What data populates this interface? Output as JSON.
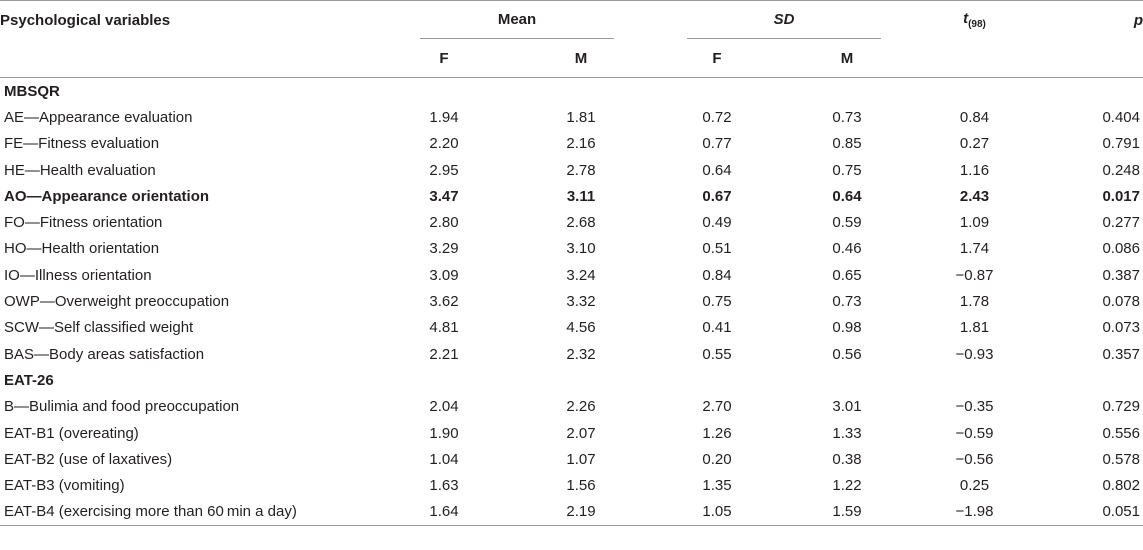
{
  "header": {
    "variable_col": "Psychological variables",
    "mean_group": "Mean",
    "sd_group": "SD",
    "t_label": "t",
    "t_sub": "(98)",
    "p_label": "p",
    "f_label": "F",
    "m_label": "M"
  },
  "rows": [
    {
      "type": "section",
      "label": "MBSQR"
    },
    {
      "type": "data",
      "label": "AE—Appearance evaluation",
      "mean_f": "1.94",
      "mean_m": "1.81",
      "sd_f": "0.72",
      "sd_m": "0.73",
      "t": "0.84",
      "p": "0.404"
    },
    {
      "type": "data",
      "label": "FE—Fitness evaluation",
      "mean_f": "2.20",
      "mean_m": "2.16",
      "sd_f": "0.77",
      "sd_m": "0.85",
      "t": "0.27",
      "p": "0.791"
    },
    {
      "type": "data",
      "label": "HE—Health evaluation",
      "mean_f": "2.95",
      "mean_m": "2.78",
      "sd_f": "0.64",
      "sd_m": "0.75",
      "t": "1.16",
      "p": "0.248"
    },
    {
      "type": "bold",
      "label": "AO—Appearance orientation",
      "mean_f": "3.47",
      "mean_m": "3.11",
      "sd_f": "0.67",
      "sd_m": "0.64",
      "t": "2.43",
      "p": "0.017"
    },
    {
      "type": "data",
      "label": "FO—Fitness orientation",
      "mean_f": "2.80",
      "mean_m": "2.68",
      "sd_f": "0.49",
      "sd_m": "0.59",
      "t": "1.09",
      "p": "0.277"
    },
    {
      "type": "data",
      "label": "HO—Health orientation",
      "mean_f": "3.29",
      "mean_m": "3.10",
      "sd_f": "0.51",
      "sd_m": "0.46",
      "t": "1.74",
      "p": "0.086"
    },
    {
      "type": "data",
      "label": "IO—Illness orientation",
      "mean_f": "3.09",
      "mean_m": "3.24",
      "sd_f": "0.84",
      "sd_m": "0.65",
      "t": "−0.87",
      "p": "0.387"
    },
    {
      "type": "data",
      "label": "OWP—Overweight preoccupation",
      "mean_f": "3.62",
      "mean_m": "3.32",
      "sd_f": "0.75",
      "sd_m": "0.73",
      "t": "1.78",
      "p": "0.078"
    },
    {
      "type": "data",
      "label": "SCW—Self classified weight",
      "mean_f": "4.81",
      "mean_m": "4.56",
      "sd_f": "0.41",
      "sd_m": "0.98",
      "t": "1.81",
      "p": "0.073"
    },
    {
      "type": "data",
      "label": "BAS—Body areas satisfaction",
      "mean_f": "2.21",
      "mean_m": "2.32",
      "sd_f": "0.55",
      "sd_m": "0.56",
      "t": "−0.93",
      "p": "0.357"
    },
    {
      "type": "section",
      "label": "EAT-26"
    },
    {
      "type": "data",
      "label": "B—Bulimia and food preoccupation",
      "mean_f": "2.04",
      "mean_m": "2.26",
      "sd_f": "2.70",
      "sd_m": "3.01",
      "t": "−0.35",
      "p": "0.729"
    },
    {
      "type": "data",
      "label": "EAT-B1 (overeating)",
      "mean_f": "1.90",
      "mean_m": "2.07",
      "sd_f": "1.26",
      "sd_m": "1.33",
      "t": "−0.59",
      "p": "0.556"
    },
    {
      "type": "data",
      "label": "EAT-B2 (use of laxatives)",
      "mean_f": "1.04",
      "mean_m": "1.07",
      "sd_f": "0.20",
      "sd_m": "0.38",
      "t": "−0.56",
      "p": "0.578"
    },
    {
      "type": "data",
      "label": "EAT-B3 (vomiting)",
      "mean_f": "1.63",
      "mean_m": "1.56",
      "sd_f": "1.35",
      "sd_m": "1.22",
      "t": "0.25",
      "p": "0.802"
    },
    {
      "type": "data",
      "label": "EAT-B4 (exercising more than 60 min a day)",
      "mean_f": "1.64",
      "mean_m": "2.19",
      "sd_f": "1.05",
      "sd_m": "1.59",
      "t": "−1.98",
      "p": "0.051"
    }
  ]
}
